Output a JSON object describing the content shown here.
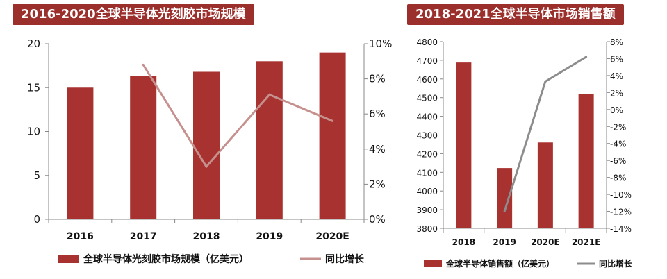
{
  "chart_data": [
    {
      "type": "bar",
      "title": "2016-2020全球半导体光刻胶市场规模",
      "categories": [
        "2016",
        "2017",
        "2018",
        "2019",
        "2020E"
      ],
      "series": [
        {
          "name": "全球半导体光刻胶市场规模（亿美元）",
          "type": "bar",
          "axis": "left",
          "values": [
            15.0,
            16.3,
            16.8,
            18.0,
            19.0
          ]
        },
        {
          "name": "同比增长",
          "type": "line",
          "axis": "right",
          "values": [
            null,
            8.8,
            3.0,
            7.1,
            5.6
          ]
        }
      ],
      "ylim_left": [
        0,
        20
      ],
      "yticks_left": [
        "0",
        "5",
        "10",
        "15",
        "20"
      ],
      "ylim_right": [
        0,
        10
      ],
      "yticks_right": [
        "0%",
        "2%",
        "4%",
        "6%",
        "8%",
        "10%"
      ],
      "bar_color": "#a7322f",
      "line_color": "#c5908d",
      "grid": false,
      "legend_position": "bottom"
    },
    {
      "type": "bar",
      "title": "2018-2021全球半导体市场销售额",
      "categories": [
        "2018",
        "2019",
        "2020E",
        "2021E"
      ],
      "series": [
        {
          "name": "全球半导体销售额（亿美元）",
          "type": "bar",
          "axis": "left",
          "values": [
            4688,
            4123,
            4260,
            4520
          ]
        },
        {
          "name": "同比增长",
          "type": "line",
          "axis": "right",
          "values": [
            null,
            -12.0,
            3.3,
            6.2
          ]
        }
      ],
      "ylim_left": [
        3800,
        4800
      ],
      "yticks_left": [
        "3800",
        "3900",
        "4000",
        "4100",
        "4200",
        "4300",
        "4400",
        "4500",
        "4600",
        "4700",
        "4800"
      ],
      "ylim_right": [
        -14,
        8
      ],
      "yticks_right": [
        "-14%",
        "-12%",
        "-10%",
        "-8%",
        "-6%",
        "-4%",
        "-2%",
        "0%",
        "2%",
        "4%",
        "6%",
        "8%"
      ],
      "bar_color": "#a7322f",
      "line_color": "#8c8c8c",
      "grid": false,
      "legend_position": "bottom"
    }
  ]
}
